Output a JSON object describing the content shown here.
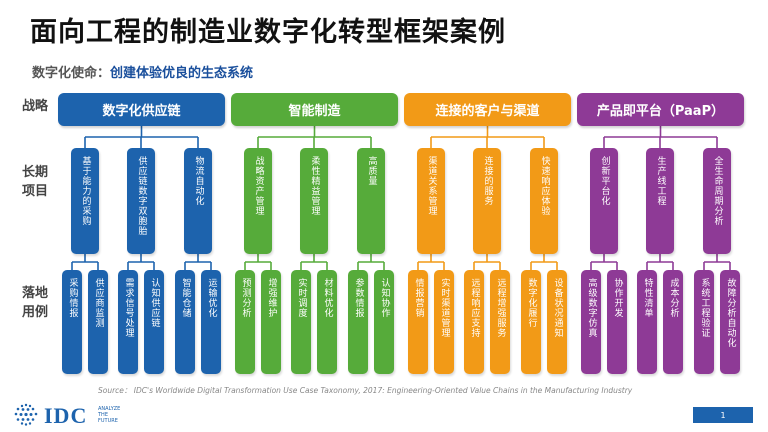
{
  "title": "面向工程的制造业数字化转型框架案例",
  "mission": {
    "label": "数字化使命：",
    "value": "创建体验优良的生态系统"
  },
  "row_labels": {
    "strategy": "战略",
    "projects": "长期项目",
    "landing": "落地用例"
  },
  "colors": {
    "blue": "#1d63ad",
    "green": "#56ab3a",
    "orange": "#f29a17",
    "purple": "#8e3a96"
  },
  "categories": [
    {
      "name": "数字化供应链",
      "color": "#1d63ad",
      "projects": [
        {
          "name": "基于能力的采购",
          "cases": [
            "采购情报",
            "供应商监测"
          ]
        },
        {
          "name": "供应链数字双胞胎",
          "cases": [
            "需求信号处理",
            "认知供应链"
          ]
        },
        {
          "name": "物流自动化",
          "cases": [
            "智能仓储",
            "运输优化"
          ]
        }
      ]
    },
    {
      "name": "智能制造",
      "color": "#56ab3a",
      "projects": [
        {
          "name": "战略资产管理",
          "cases": [
            "预测分析",
            "增强维护"
          ]
        },
        {
          "name": "柔性精益管理",
          "cases": [
            "实时调度",
            "材料优化"
          ]
        },
        {
          "name": "高质量",
          "cases": [
            "参数情报",
            "认知协作"
          ]
        }
      ]
    },
    {
      "name": "连接的客户与渠道",
      "color": "#f29a17",
      "projects": [
        {
          "name": "渠道关系管理",
          "cases": [
            "情报营销",
            "实时渠道管理"
          ]
        },
        {
          "name": "连接的服务",
          "cases": [
            "远程响应支持",
            "远程增强服务"
          ]
        },
        {
          "name": "快速响应体验",
          "cases": [
            "数字化履行",
            "设备状况通知"
          ]
        }
      ]
    },
    {
      "name": "产品即平台（PaaP）",
      "color": "#8e3a96",
      "projects": [
        {
          "name": "创新平台化",
          "cases": [
            "高级数字仿真",
            "协作开发"
          ]
        },
        {
          "name": "生产线工程",
          "cases": [
            "特性清单",
            "成本分析"
          ]
        },
        {
          "name": "全生命周期分析",
          "cases": [
            "系统工程验证",
            "故障分析自动化"
          ]
        }
      ]
    }
  ],
  "source": "Source： IDC's Worldwide Digital Transformation Use Case Taxonomy, 2017: Engineering-Oriented Value Chains in the Manufacturing Industry",
  "logo": {
    "name": "IDC",
    "tagline": "ANALYZE THE FUTURE"
  },
  "page_number": "1"
}
